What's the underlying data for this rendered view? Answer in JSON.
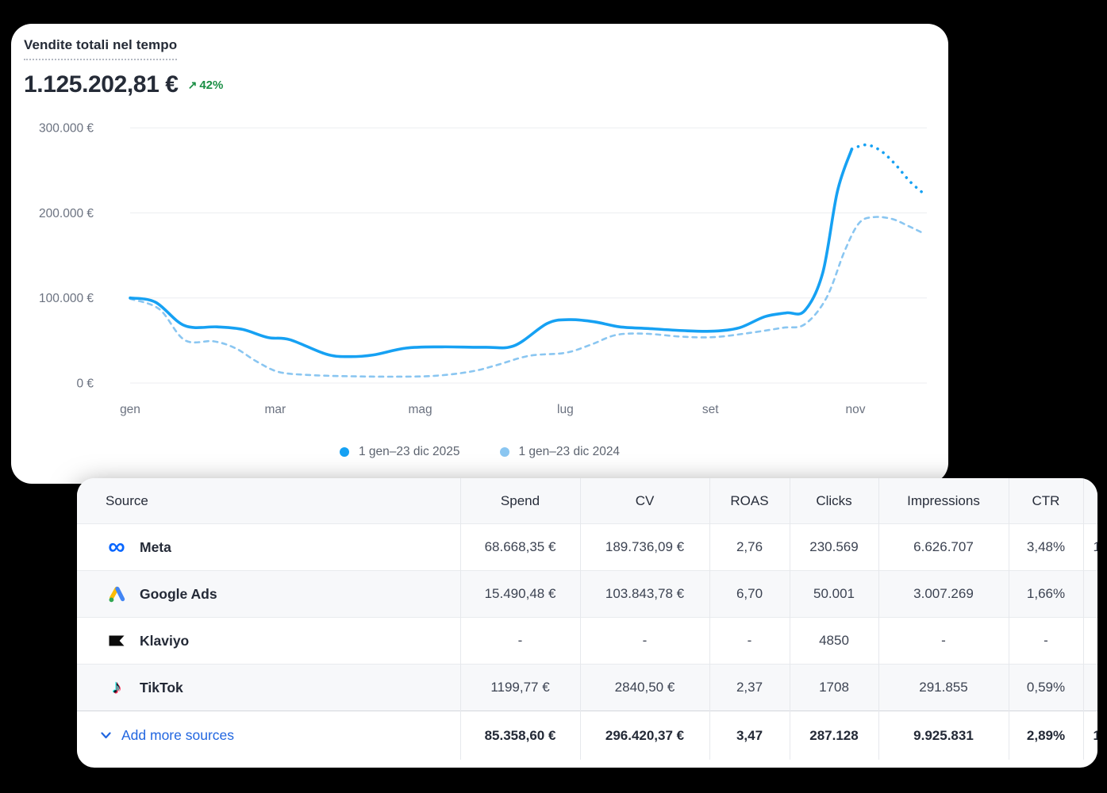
{
  "chart_card": {
    "title": "Vendite totali nel tempo",
    "total_value": "1.125.202,81 €",
    "delta": "42%",
    "delta_arrow": "↗",
    "delta_color": "#1b8f45",
    "legend": [
      {
        "label": "1 gen–23 dic 2025",
        "color": "#16a1f3"
      },
      {
        "label": "1 gen–23 dic 2024",
        "color": "#8ac6f1"
      }
    ]
  },
  "chart_data": {
    "type": "line",
    "title": "Vendite totali nel tempo",
    "total": "1.125.202,81 €",
    "delta_pct": 42,
    "grid": true,
    "legend_position": "bottom",
    "ylabel": "",
    "xlabel": "",
    "ylim": [
      0,
      300000
    ],
    "y_tick_values": [
      0,
      100000,
      200000,
      300000
    ],
    "y_tick_labels": [
      "0 €",
      "100.000 €",
      "200.000 €",
      "300.000 €"
    ],
    "x_tick_labels": [
      "gen",
      "mar",
      "mag",
      "lug",
      "set",
      "nov"
    ],
    "x_tick_months": [
      0,
      2,
      4,
      6,
      8,
      10
    ],
    "x_unit": "month index, 0 = gen ... 11 = dic",
    "series": [
      {
        "name": "1 gen–23 dic 2025",
        "color": "#16a1f3",
        "style": "solid",
        "projection_style": "dotted",
        "projection_from_month": 9.95,
        "points": [
          [
            0,
            100000
          ],
          [
            0.35,
            95000
          ],
          [
            0.75,
            67500
          ],
          [
            1.2,
            66000
          ],
          [
            1.55,
            63000
          ],
          [
            1.9,
            53500
          ],
          [
            2.2,
            51000
          ],
          [
            2.7,
            34000
          ],
          [
            3.0,
            31000
          ],
          [
            3.35,
            33000
          ],
          [
            3.8,
            41000
          ],
          [
            4.3,
            42500
          ],
          [
            4.9,
            42000
          ],
          [
            5.3,
            44000
          ],
          [
            5.75,
            70000
          ],
          [
            6.05,
            74500
          ],
          [
            6.4,
            72000
          ],
          [
            6.75,
            66000
          ],
          [
            7.15,
            64000
          ],
          [
            7.65,
            61500
          ],
          [
            8.05,
            61000
          ],
          [
            8.4,
            65000
          ],
          [
            8.75,
            78000
          ],
          [
            9.05,
            82500
          ],
          [
            9.3,
            85000
          ],
          [
            9.55,
            130000
          ],
          [
            9.75,
            225000
          ],
          [
            9.95,
            275000
          ],
          [
            10.15,
            280000
          ],
          [
            10.35,
            273000
          ],
          [
            10.55,
            257000
          ],
          [
            10.75,
            237000
          ],
          [
            10.95,
            222000
          ]
        ]
      },
      {
        "name": "1 gen–23 dic 2024",
        "color": "#8ac6f1",
        "style": "dashed",
        "points": [
          [
            0,
            99000
          ],
          [
            0.4,
            87000
          ],
          [
            0.75,
            50500
          ],
          [
            1.15,
            49000
          ],
          [
            1.45,
            41000
          ],
          [
            1.75,
            25000
          ],
          [
            2.05,
            13000
          ],
          [
            2.45,
            9500
          ],
          [
            3.0,
            8000
          ],
          [
            3.6,
            7500
          ],
          [
            4.2,
            8500
          ],
          [
            4.7,
            13500
          ],
          [
            5.05,
            21000
          ],
          [
            5.5,
            32000
          ],
          [
            6.0,
            35500
          ],
          [
            6.35,
            45000
          ],
          [
            6.7,
            56500
          ],
          [
            7.1,
            58000
          ],
          [
            7.6,
            54500
          ],
          [
            8.05,
            54000
          ],
          [
            8.55,
            59000
          ],
          [
            9.0,
            65000
          ],
          [
            9.3,
            69000
          ],
          [
            9.6,
            100000
          ],
          [
            9.85,
            155000
          ],
          [
            10.05,
            188000
          ],
          [
            10.25,
            195000
          ],
          [
            10.5,
            193000
          ],
          [
            10.72,
            185000
          ],
          [
            10.95,
            175500
          ]
        ]
      }
    ]
  },
  "table": {
    "columns": [
      "Source",
      "Spend",
      "CV",
      "ROAS",
      "Clicks",
      "Impressions",
      "CTR"
    ],
    "rows": [
      {
        "source": "Meta",
        "icon": "meta-icon",
        "spend": "68.668,35 €",
        "cv": "189.736,09 €",
        "roas": "2,76",
        "clicks": "230.569",
        "impressions": "6.626.707",
        "ctr": "3,48%",
        "extra": "1"
      },
      {
        "source": "Google Ads",
        "icon": "google-ads-icon",
        "spend": "15.490,48 €",
        "cv": "103.843,78 €",
        "roas": "6,70",
        "clicks": "50.001",
        "impressions": "3.007.269",
        "ctr": "1,66%",
        "extra": ""
      },
      {
        "source": "Klaviyo",
        "icon": "klaviyo-icon",
        "spend": "-",
        "cv": "-",
        "roas": "-",
        "clicks": "4850",
        "impressions": "-",
        "ctr": "-",
        "extra": ""
      },
      {
        "source": "TikTok",
        "icon": "tiktok-icon",
        "spend": "1199,77 €",
        "cv": "2840,50 €",
        "roas": "2,37",
        "clicks": "1708",
        "impressions": "291.855",
        "ctr": "0,59%",
        "extra": ""
      }
    ],
    "footer": {
      "label": "Add more sources",
      "spend": "85.358,60 €",
      "cv": "296.420,37 €",
      "roas": "3,47",
      "clicks": "287.128",
      "impressions": "9.925.831",
      "ctr": "2,89%",
      "extra": "1"
    },
    "link_color": "#2166e0"
  }
}
